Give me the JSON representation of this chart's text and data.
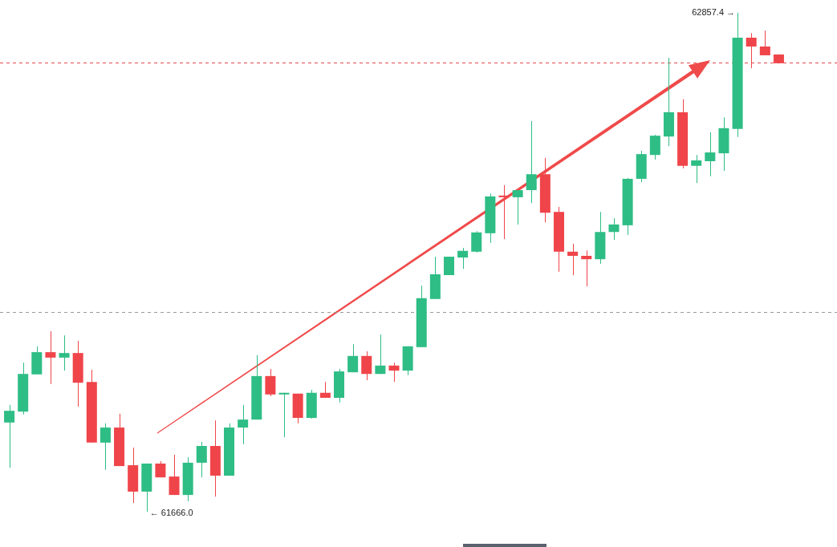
{
  "chart_data": {
    "type": "candlestick",
    "categories": [
      null,
      null,
      null,
      null,
      null,
      null,
      null,
      null,
      null,
      null,
      null,
      null,
      null,
      null,
      null,
      null,
      null,
      null,
      null,
      null,
      null,
      null,
      null,
      null,
      null,
      null,
      null,
      null,
      null,
      null,
      null,
      null,
      null,
      null,
      null,
      null,
      null,
      null,
      null,
      null,
      null,
      null,
      null,
      null,
      null,
      null,
      null,
      null,
      null,
      null,
      null,
      null,
      null,
      null,
      null,
      null,
      null
    ],
    "ohlc": [
      [
        61879,
        61921,
        61771,
        61907
      ],
      [
        61905,
        62022,
        61898,
        61995
      ],
      [
        61994,
        62061,
        61994,
        62047
      ],
      [
        62047,
        62097,
        61971,
        62034
      ],
      [
        62034,
        62087,
        62003,
        62045
      ],
      [
        62045,
        62074,
        61917,
        61974
      ],
      [
        61976,
        62005,
        61831,
        61831
      ],
      [
        61831,
        61877,
        61766,
        61867
      ],
      [
        61867,
        61900,
        61775,
        61775
      ],
      [
        61777,
        61819,
        61687,
        61714
      ],
      [
        61714,
        61781,
        61666.0,
        61781
      ],
      [
        61781,
        61787,
        61748,
        61748
      ],
      [
        61750,
        61802,
        61706,
        61706
      ],
      [
        61706,
        61796,
        61691,
        61783
      ],
      [
        61783,
        61833,
        61748,
        61823
      ],
      [
        61823,
        61884,
        61702,
        61752
      ],
      [
        61752,
        61877,
        61752,
        61867
      ],
      [
        61867,
        61921,
        61827,
        61886
      ],
      [
        61886,
        62040,
        61886,
        61990
      ],
      [
        61990,
        62007,
        61942,
        61946
      ],
      [
        61946,
        61950,
        61844,
        61950
      ],
      [
        61948,
        61948,
        61877,
        61890
      ],
      [
        61890,
        61957,
        61888,
        61950
      ],
      [
        61950,
        61976,
        61938,
        61938
      ],
      [
        61938,
        62007,
        61927,
        62001
      ],
      [
        61999,
        62066,
        61999,
        62038
      ],
      [
        62038,
        62049,
        61980,
        61995
      ],
      [
        61995,
        62089,
        61995,
        62015
      ],
      [
        62015,
        62022,
        61976,
        62003
      ],
      [
        62003,
        62061,
        61992,
        62061
      ],
      [
        62059,
        62206,
        62059,
        62176
      ],
      [
        62174,
        62275,
        62174,
        62233
      ],
      [
        62231,
        62275,
        62231,
        62275
      ],
      [
        62273,
        62296,
        62246,
        62289
      ],
      [
        62287,
        62336,
        62285,
        62333
      ],
      [
        62331,
        62426,
        62308,
        62419
      ],
      [
        62421,
        62446,
        62317,
        62417
      ],
      [
        62417,
        62434,
        62352,
        62434
      ],
      [
        62434,
        62599,
        62403,
        62472
      ],
      [
        62472,
        62511,
        62357,
        62380
      ],
      [
        62382,
        62394,
        62239,
        62287
      ],
      [
        62287,
        62306,
        62231,
        62277
      ],
      [
        62277,
        62290,
        62204,
        62269
      ],
      [
        62269,
        62382,
        62258,
        62334
      ],
      [
        62334,
        62367,
        62315,
        62352
      ],
      [
        62350,
        62463,
        62327,
        62461
      ],
      [
        62461,
        62528,
        62453,
        62520
      ],
      [
        62518,
        62566,
        62507,
        62564
      ],
      [
        62562,
        62750,
        62539,
        62620
      ],
      [
        62620,
        62651,
        62486,
        62492
      ],
      [
        62492,
        62518,
        62451,
        62505
      ],
      [
        62503,
        62572,
        62467,
        62524
      ],
      [
        62522,
        62608,
        62480,
        62582
      ],
      [
        62580,
        62857.4,
        62561,
        62798
      ],
      [
        62798,
        62809,
        62725,
        62777
      ],
      [
        62777,
        62815,
        62756,
        62756
      ],
      [
        62758,
        62758,
        62737,
        62737
      ]
    ],
    "colors": [
      "#2ebd85",
      "#2ebd85",
      "#2ebd85",
      "#ef454a",
      "#2ebd85",
      "#ef454a",
      "#ef454a",
      "#2ebd85",
      "#ef454a",
      "#ef454a",
      "#2ebd85",
      "#ef454a",
      "#ef454a",
      "#2ebd85",
      "#2ebd85",
      "#ef454a",
      "#2ebd85",
      "#2ebd85",
      "#2ebd85",
      "#ef454a",
      "#2ebd85",
      "#ef454a",
      "#2ebd85",
      "#ef454a",
      "#2ebd85",
      "#2ebd85",
      "#ef454a",
      "#2ebd85",
      "#ef454a",
      "#2ebd85",
      "#2ebd85",
      "#2ebd85",
      "#2ebd85",
      "#2ebd85",
      "#2ebd85",
      "#2ebd85",
      "#ef454a",
      "#2ebd85",
      "#2ebd85",
      "#ef454a",
      "#ef454a",
      "#ef454a",
      "#ef454a",
      "#2ebd85",
      "#2ebd85",
      "#2ebd85",
      "#2ebd85",
      "#2ebd85",
      "#2ebd85",
      "#ef454a",
      "#2ebd85",
      "#2ebd85",
      "#2ebd85",
      "#2ebd85",
      "#ef454a",
      "#ef454a",
      "#ef454a"
    ],
    "annotations": [
      "62857.4 →",
      "← 61666.0"
    ],
    "ref_lines": [
      {
        "axis": "y",
        "value": 62739,
        "color": "#e5484d",
        "line_style": "dashed"
      },
      {
        "axis": "y",
        "value": 62143,
        "color": "#999999",
        "line_style": "dashed"
      }
    ],
    "tick_labels": false,
    "legend": false
  }
}
